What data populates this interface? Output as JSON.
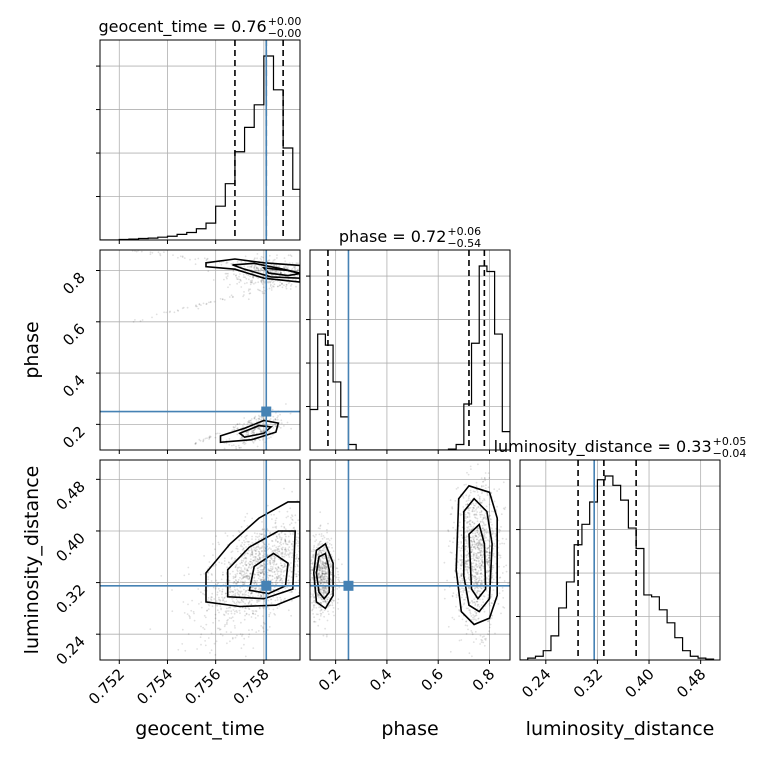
{
  "chart_data": {
    "type": "corner",
    "parameters": [
      "geocent_time",
      "phase",
      "luminosity_distance"
    ],
    "axis_labels": {
      "geocent_time": "geocent_time",
      "phase": "phase",
      "luminosity_distance": "luminosity_distance"
    },
    "titles": [
      {
        "param": "geocent_time",
        "label": "geocent_time = ",
        "median": "0.76",
        "upper": "+0.00",
        "lower": "−0.00"
      },
      {
        "param": "phase",
        "label": "phase = ",
        "median": "0.72",
        "upper": "+0.06",
        "lower": "−0.54"
      },
      {
        "param": "luminosity_distance",
        "label": "luminosity_distance = ",
        "median": "0.33",
        "upper": "+0.05",
        "lower": "−0.04"
      }
    ],
    "ranges": {
      "geocent_time": [
        0.7512,
        0.7595
      ],
      "phase": [
        0.1,
        0.88
      ],
      "luminosity_distance": [
        0.2,
        0.51
      ]
    },
    "ticks": {
      "geocent_time": [
        "0.752",
        "0.754",
        "0.756",
        "0.758"
      ],
      "phase_x": [
        "0.2",
        "0.4",
        "0.6",
        "0.8"
      ],
      "phase_y": [
        "0.2",
        "0.4",
        "0.6",
        "0.8"
      ],
      "luminosity_distance_x": [
        "0.24",
        "0.32",
        "0.40",
        "0.48"
      ],
      "luminosity_distance_y": [
        "0.24",
        "0.32",
        "0.40",
        "0.48"
      ]
    },
    "truths": {
      "geocent_time": 0.7581,
      "phase": 0.25,
      "luminosity_distance": 0.315
    },
    "quantiles": {
      "geocent_time": [
        0.7568,
        0.7581,
        0.7588
      ],
      "phase": [
        0.17,
        0.72,
        0.78
      ],
      "luminosity_distance": [
        0.29,
        0.33,
        0.38
      ]
    },
    "histograms": {
      "geocent_time": {
        "bins": [
          0.7512,
          0.7516,
          0.752,
          0.7524,
          0.7528,
          0.7532,
          0.7536,
          0.754,
          0.7544,
          0.7548,
          0.7552,
          0.7556,
          0.756,
          0.7564,
          0.7568,
          0.7572,
          0.7576,
          0.758,
          0.7584,
          0.7588,
          0.7592,
          0.7595
        ],
        "counts": [
          0,
          0,
          0.3,
          0.5,
          0.8,
          1.0,
          1.5,
          2.0,
          3,
          4,
          6,
          9,
          18,
          30,
          47,
          60,
          72,
          98,
          80,
          49,
          27
        ]
      },
      "phase": {
        "bins": [
          0.1,
          0.13,
          0.16,
          0.19,
          0.22,
          0.25,
          0.28,
          0.31,
          0.34,
          0.37,
          0.4,
          0.43,
          0.46,
          0.49,
          0.52,
          0.55,
          0.58,
          0.61,
          0.64,
          0.67,
          0.7,
          0.73,
          0.76,
          0.79,
          0.82,
          0.85,
          0.88
        ],
        "counts": [
          22,
          63,
          57,
          37,
          18,
          3,
          0,
          0,
          0,
          0,
          0,
          0,
          0,
          0,
          0,
          0,
          0,
          0,
          0.5,
          3,
          25,
          58,
          100,
          97,
          63,
          10
        ]
      },
      "luminosity_distance": {
        "bins": [
          0.2,
          0.212,
          0.224,
          0.236,
          0.248,
          0.26,
          0.272,
          0.284,
          0.296,
          0.308,
          0.32,
          0.332,
          0.344,
          0.356,
          0.368,
          0.38,
          0.392,
          0.404,
          0.416,
          0.428,
          0.44,
          0.452,
          0.464,
          0.476,
          0.488,
          0.5
        ],
        "counts": [
          0,
          1,
          2,
          5,
          13,
          28,
          42,
          62,
          73,
          85,
          97,
          99,
          94,
          86,
          71,
          60,
          35,
          34,
          27,
          20,
          12,
          5,
          2,
          1,
          0.5
        ]
      }
    },
    "contours_2d": [
      {
        "x": "geocent_time",
        "y": "phase",
        "levels": [
          [
            [
              0.7556,
              0.83
            ],
            [
              0.7568,
              0.845
            ],
            [
              0.758,
              0.83
            ],
            [
              0.7595,
              0.82
            ],
            [
              0.7595,
              0.755
            ],
            [
              0.758,
              0.77
            ],
            [
              0.7568,
              0.805
            ],
            [
              0.7556,
              0.815
            ]
          ],
          [
            [
              0.7567,
              0.822
            ],
            [
              0.7576,
              0.828
            ],
            [
              0.7588,
              0.805
            ],
            [
              0.7595,
              0.79
            ],
            [
              0.7595,
              0.77
            ],
            [
              0.7583,
              0.775
            ],
            [
              0.7572,
              0.805
            ]
          ],
          [
            [
              0.758,
              0.81
            ],
            [
              0.759,
              0.8
            ],
            [
              0.7595,
              0.788
            ],
            [
              0.759,
              0.78
            ],
            [
              0.7582,
              0.79
            ]
          ],
          [
            [
              0.7562,
              0.155
            ],
            [
              0.7572,
              0.185
            ],
            [
              0.758,
              0.215
            ],
            [
              0.7586,
              0.205
            ],
            [
              0.7585,
              0.17
            ],
            [
              0.7575,
              0.14
            ],
            [
              0.7562,
              0.13
            ]
          ],
          [
            [
              0.757,
              0.165
            ],
            [
              0.7578,
              0.195
            ],
            [
              0.7583,
              0.19
            ],
            [
              0.758,
              0.165
            ],
            [
              0.7572,
              0.15
            ]
          ]
        ]
      },
      {
        "x": "geocent_time",
        "y": "luminosity_distance",
        "levels": [
          [
            [
              0.7556,
              0.29
            ],
            [
              0.7556,
              0.335
            ],
            [
              0.7566,
              0.38
            ],
            [
              0.7578,
              0.42
            ],
            [
              0.759,
              0.445
            ],
            [
              0.7595,
              0.445
            ],
            [
              0.7595,
              0.3
            ],
            [
              0.7585,
              0.285
            ],
            [
              0.757,
              0.283
            ]
          ],
          [
            [
              0.7565,
              0.298
            ],
            [
              0.7565,
              0.34
            ],
            [
              0.7574,
              0.375
            ],
            [
              0.7586,
              0.4
            ],
            [
              0.7593,
              0.4
            ],
            [
              0.7592,
              0.31
            ],
            [
              0.758,
              0.295
            ]
          ],
          [
            [
              0.7574,
              0.308
            ],
            [
              0.7576,
              0.345
            ],
            [
              0.7584,
              0.365
            ],
            [
              0.759,
              0.35
            ],
            [
              0.7589,
              0.315
            ],
            [
              0.7582,
              0.303
            ]
          ]
        ]
      },
      {
        "x": "phase",
        "y": "luminosity_distance",
        "levels": [
          [
            [
              0.115,
              0.335
            ],
            [
              0.125,
              0.37
            ],
            [
              0.16,
              0.38
            ],
            [
              0.19,
              0.35
            ],
            [
              0.19,
              0.3
            ],
            [
              0.16,
              0.28
            ],
            [
              0.125,
              0.29
            ]
          ],
          [
            [
              0.125,
              0.335
            ],
            [
              0.135,
              0.36
            ],
            [
              0.16,
              0.365
            ],
            [
              0.175,
              0.34
            ],
            [
              0.175,
              0.305
            ],
            [
              0.155,
              0.295
            ],
            [
              0.135,
              0.305
            ]
          ],
          [
            [
              0.68,
              0.45
            ],
            [
              0.72,
              0.47
            ],
            [
              0.8,
              0.46
            ],
            [
              0.83,
              0.42
            ],
            [
              0.83,
              0.3
            ],
            [
              0.8,
              0.265
            ],
            [
              0.74,
              0.255
            ],
            [
              0.69,
              0.275
            ],
            [
              0.67,
              0.34
            ]
          ],
          [
            [
              0.7,
              0.43
            ],
            [
              0.74,
              0.45
            ],
            [
              0.79,
              0.43
            ],
            [
              0.81,
              0.38
            ],
            [
              0.8,
              0.295
            ],
            [
              0.76,
              0.275
            ],
            [
              0.72,
              0.285
            ],
            [
              0.7,
              0.33
            ]
          ],
          [
            [
              0.72,
              0.395
            ],
            [
              0.76,
              0.41
            ],
            [
              0.78,
              0.38
            ],
            [
              0.785,
              0.31
            ],
            [
              0.755,
              0.295
            ],
            [
              0.73,
              0.31
            ]
          ]
        ]
      }
    ]
  }
}
